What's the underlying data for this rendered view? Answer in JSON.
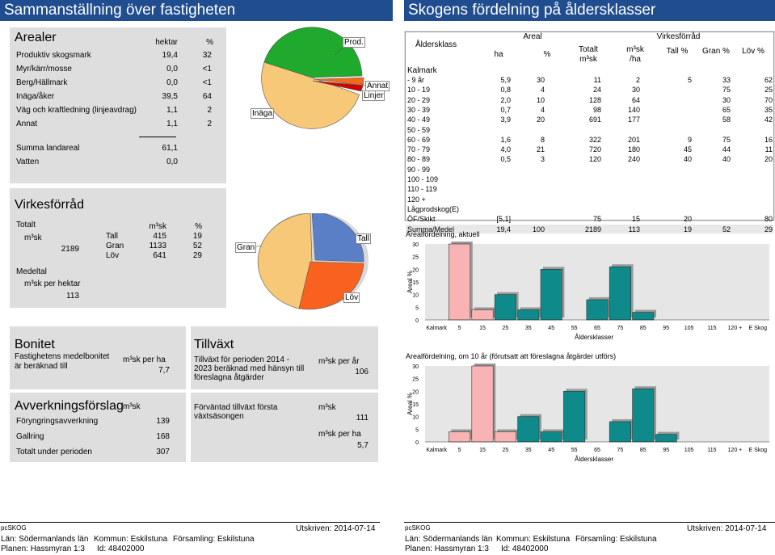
{
  "left_title": "Sammanställning över fastigheten",
  "right_title": "Skogens fördelning på åldersklasser",
  "arealer": {
    "title": "Arealer",
    "col_hektar": "hektar",
    "col_pct": "%",
    "rows": [
      {
        "label": "Produktiv skogsmark",
        "ha": "19,4",
        "pct": "32"
      },
      {
        "label": "Myr/kärr/mosse",
        "ha": "0,0",
        "pct": "<1"
      },
      {
        "label": "Berg/Hällmark",
        "ha": "0,0",
        "pct": "<1"
      },
      {
        "label": "Inäga/åker",
        "ha": "39,5",
        "pct": "64"
      },
      {
        "label": "Väg och kraftledning (linjeavdrag)",
        "ha": "1,1",
        "pct": "2"
      },
      {
        "label": "Annat",
        "ha": "1,1",
        "pct": "2"
      }
    ],
    "summa_label": "Summa landareal",
    "summa_value": "61,1",
    "vatten_label": "Vatten",
    "vatten_value": "0,0"
  },
  "pie_areal": {
    "labels": {
      "prod": "Prod.",
      "annat": "Annat",
      "linjer": "Linjer",
      "inaga": "Inäga"
    },
    "colors": {
      "prod": "#1faa2d",
      "inaga": "#f6c878",
      "annat": "#f26a1b",
      "linjer": "#d40000"
    }
  },
  "virkesforrad": {
    "title": "Virkesförråd",
    "totalt_label": "Totalt",
    "m3sk_label": "m³sk",
    "totalt_value": "2189",
    "col_m3sk": "m³sk",
    "col_pct": "%",
    "species": [
      {
        "name": "Tall",
        "m3sk": "415",
        "pct": "19"
      },
      {
        "name": "Gran",
        "m3sk": "1133",
        "pct": "52"
      },
      {
        "name": "Löv",
        "m3sk": "641",
        "pct": "29"
      }
    ],
    "medeltal_label": "Medeltal",
    "per_hektar_label": "m³sk per hektar",
    "per_hektar_value": "113"
  },
  "pie_virke": {
    "labels": {
      "gran": "Gran",
      "tall": "Tall",
      "lov": "Löv"
    },
    "colors": {
      "gran": "#f6c878",
      "tall": "#5b7fc6",
      "lov": "#f8621e"
    }
  },
  "bonitet": {
    "title": "Bonitet",
    "text": "Fastighetens medelbonitet är beräknad till",
    "unit": "m³sk per ha",
    "value": "7,7"
  },
  "tillvaxt": {
    "title": "Tillväxt",
    "text": "Tillväxt för perioden 2014 - 2023 beräknad med hänsyn till föreslagna åtgärder",
    "unit": "m³sk per år",
    "value": "106",
    "forvantad_text": "Förväntad tillväxt första växtsäsongen",
    "forvantad_unit": "m³sk",
    "forvantad_value": "111",
    "perha_unit": "m³sk per ha",
    "perha_value": "5,7"
  },
  "avverkning": {
    "title": "Avverkningsförslag",
    "unit": "m³sk",
    "rows": [
      {
        "label": "Föryngringsavverkning",
        "value": "139"
      },
      {
        "label": "Gallring",
        "value": "168"
      },
      {
        "label": "Totalt under perioden",
        "value": "307"
      }
    ]
  },
  "age_table": {
    "h_aldersklass": "Åldersklass",
    "h_areal": "Areal",
    "h_virke": "Virkesförråd",
    "h_ha": "ha",
    "h_pct": "%",
    "h_totalt": "Totalt",
    "h_m3sk": "m³sk",
    "h_m3sk2": "m³sk",
    "h_ha2": "/ha",
    "h_tall": "Tall %",
    "h_gran": "Gran %",
    "h_lov": "Löv %",
    "kalmark": "Kalmark",
    "rows": [
      {
        "k": "-  9 år",
        "ha": "5,9",
        "pct": "30",
        "tot": "11",
        "perha": "2",
        "tall": "5",
        "gran": "33",
        "lov": "62"
      },
      {
        "k": "10 -  19",
        "ha": "0,8",
        "pct": "4",
        "tot": "24",
        "perha": "30",
        "tall": "",
        "gran": "75",
        "lov": "25"
      },
      {
        "k": "20 -  29",
        "ha": "2,0",
        "pct": "10",
        "tot": "128",
        "perha": "64",
        "tall": "",
        "gran": "30",
        "lov": "70"
      },
      {
        "k": "30 -  39",
        "ha": "0,7",
        "pct": "4",
        "tot": "98",
        "perha": "140",
        "tall": "",
        "gran": "65",
        "lov": "35"
      },
      {
        "k": "40 -  49",
        "ha": "3,9",
        "pct": "20",
        "tot": "691",
        "perha": "177",
        "tall": "",
        "gran": "58",
        "lov": "42"
      },
      {
        "k": "50 -  59",
        "ha": "",
        "pct": "",
        "tot": "",
        "perha": "",
        "tall": "",
        "gran": "",
        "lov": ""
      },
      {
        "k": "60 -  69",
        "ha": "1,6",
        "pct": "8",
        "tot": "322",
        "perha": "201",
        "tall": "9",
        "gran": "75",
        "lov": "16"
      },
      {
        "k": "70 -  79",
        "ha": "4,0",
        "pct": "21",
        "tot": "720",
        "perha": "180",
        "tall": "45",
        "gran": "44",
        "lov": "11"
      },
      {
        "k": "80 -  89",
        "ha": "0,5",
        "pct": "3",
        "tot": "120",
        "perha": "240",
        "tall": "40",
        "gran": "40",
        "lov": "20"
      },
      {
        "k": "90 -  99",
        "ha": "",
        "pct": "",
        "tot": "",
        "perha": "",
        "tall": "",
        "gran": "",
        "lov": ""
      },
      {
        "k": "100 - 109",
        "ha": "",
        "pct": "",
        "tot": "",
        "perha": "",
        "tall": "",
        "gran": "",
        "lov": ""
      },
      {
        "k": "110 - 119",
        "ha": "",
        "pct": "",
        "tot": "",
        "perha": "",
        "tall": "",
        "gran": "",
        "lov": ""
      },
      {
        "k": "120 +",
        "ha": "",
        "pct": "",
        "tot": "",
        "perha": "",
        "tall": "",
        "gran": "",
        "lov": ""
      },
      {
        "k": "Lågprodskog(E)",
        "ha": "",
        "pct": "",
        "tot": "",
        "perha": "",
        "tall": "",
        "gran": "",
        "lov": ""
      },
      {
        "k": "ÖF/Skikt",
        "ha": "[5,1]",
        "pct": "",
        "tot": "75",
        "perha": "15",
        "tall": "20",
        "gran": "",
        "lov": "80"
      }
    ],
    "summa": {
      "k": "Summa/Medel",
      "ha": "19,4",
      "pct": "100",
      "tot": "2189",
      "perha": "113",
      "tall": "19",
      "gran": "52",
      "lov": "29"
    }
  },
  "chart_data": [
    {
      "type": "bar",
      "title": "Arealfördelning, aktuell",
      "xlabel": "Åldersklasser",
      "ylabel": "Areal %",
      "categories": [
        "Kalmark",
        "5",
        "15",
        "25",
        "35",
        "45",
        "55",
        "65",
        "75",
        "85",
        "95",
        "105",
        "115",
        "120 +",
        "E Skog"
      ],
      "values": [
        0,
        30,
        4,
        10,
        4,
        20,
        0,
        8,
        21,
        3,
        0,
        0,
        0,
        0,
        0
      ],
      "ylim": [
        0,
        30
      ],
      "yticks": [
        "0",
        "5",
        "10",
        "15",
        "20",
        "25",
        "30"
      ]
    },
    {
      "type": "bar",
      "title": "Arealfördelning, om 10 år (förutsatt att föreslagna åtgärder utförs)",
      "xlabel": "Åldersklasser",
      "ylabel": "Areal %",
      "categories": [
        "Kalmark",
        "5",
        "15",
        "25",
        "35",
        "45",
        "55",
        "65",
        "75",
        "85",
        "95",
        "105",
        "115",
        "120 +",
        "E Skog"
      ],
      "values": [
        0,
        4,
        30,
        4,
        10,
        4,
        20,
        0,
        8,
        21,
        3,
        0,
        0,
        0,
        0
      ],
      "ylim": [
        0,
        30
      ],
      "yticks": [
        "0",
        "5",
        "10",
        "15",
        "20",
        "25",
        "30"
      ]
    }
  ],
  "bar_colors": {
    "young": "#f8b4b4",
    "old": "#0e8a8a"
  },
  "footer": {
    "brand": "pcSKOG",
    "date": "Utskriven: 2014-07-14",
    "lan": "Län: Södermanlands län",
    "kommun": "Kommun: Eskilstuna",
    "forsamling": "Församling: Eskilstuna",
    "planen": "Planen: Hassmyran 1:3",
    "id": "Id: 48402000"
  }
}
